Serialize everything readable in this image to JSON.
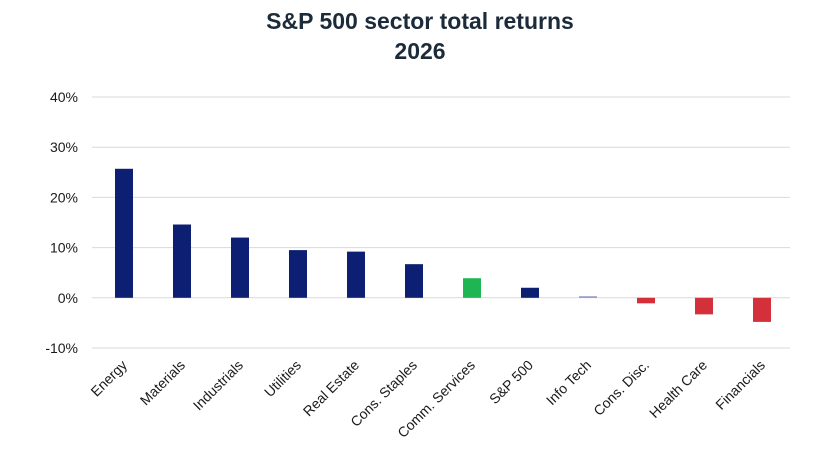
{
  "chart_data": {
    "type": "bar",
    "title": "S&P 500 sector total returns",
    "subtitle": "2026",
    "xlabel": "",
    "ylabel": "",
    "ylim": [
      -10,
      40
    ],
    "yticks": [
      -10,
      0,
      10,
      20,
      30,
      40
    ],
    "ytick_labels": [
      "-10%",
      "0%",
      "10%",
      "20%",
      "30%",
      "40%"
    ],
    "grid": true,
    "legend": "none",
    "categories": [
      "Energy",
      "Materials",
      "Industrials",
      "Utilities",
      "Real Estate",
      "Cons. Staples",
      "Comm. Services",
      "S&P 500",
      "Info Tech",
      "Cons. Disc.",
      "Health Care",
      "Financials"
    ],
    "values": [
      25.7,
      14.6,
      12.0,
      9.5,
      9.2,
      6.7,
      3.9,
      2.0,
      0.3,
      -1.1,
      -3.3,
      -4.8
    ],
    "bar_colors": [
      "#0d1f73",
      "#0d1f73",
      "#0d1f73",
      "#0d1f73",
      "#0d1f73",
      "#0d1f73",
      "#1fb552",
      "#0d1f73",
      "#8a92c8",
      "#d4303c",
      "#d4303c",
      "#d4303c"
    ]
  }
}
